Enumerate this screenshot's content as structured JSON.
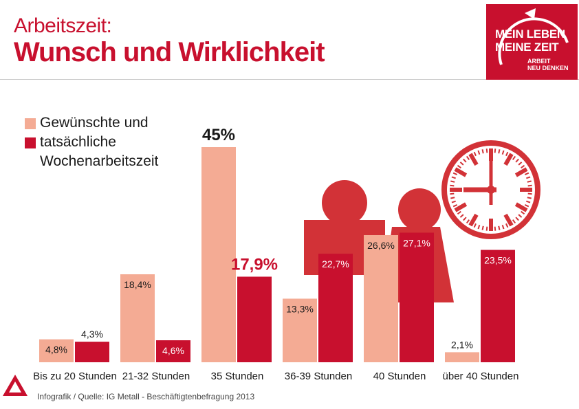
{
  "header": {
    "title_line1": "Arbeitszeit:",
    "title_line2": "Wunsch und Wirklichkeit"
  },
  "logo": {
    "line1": "MEIN LEBEN",
    "line2": "MEINE ZEIT",
    "line3": "ARBEIT",
    "line4": "NEU DENKEN",
    "icon": "circular-arrow-icon",
    "color": "#c8102e"
  },
  "legend": {
    "line1": "Gewünschte und",
    "line2": "tatsächliche",
    "line3": "Wochenarbeitszeit"
  },
  "colors": {
    "desired": "#f4ab94",
    "actual": "#c8102e",
    "illustration": "#d23237"
  },
  "decorations": [
    "people-icon",
    "clock-icon",
    "ig-metall-logo"
  ],
  "chart_data": {
    "type": "bar",
    "categories": [
      "Bis zu 20 Stunden",
      "21-32 Stunden",
      "35 Stunden",
      "36-39 Stunden",
      "40 Stunden",
      "über 40 Stunden"
    ],
    "series": [
      {
        "values": [
          4.8,
          18.4,
          45,
          13.3,
          26.6,
          2.1
        ],
        "labels": [
          "4,8%",
          "18,4%",
          "45%",
          "13,3%",
          "26,6%",
          "2,1%"
        ]
      },
      {
        "values": [
          4.3,
          4.6,
          17.9,
          22.7,
          27.1,
          23.5
        ],
        "labels": [
          "4,3%",
          "4,6%",
          "17,9%",
          "22,7%",
          "27,1%",
          "23,5%"
        ]
      }
    ],
    "ylim": [
      0,
      45
    ],
    "grid": false,
    "legend_position": "top-left"
  },
  "footer": {
    "source": "Infografik / Quelle: IG Metall - Beschäftigtenbefragung 2013"
  }
}
